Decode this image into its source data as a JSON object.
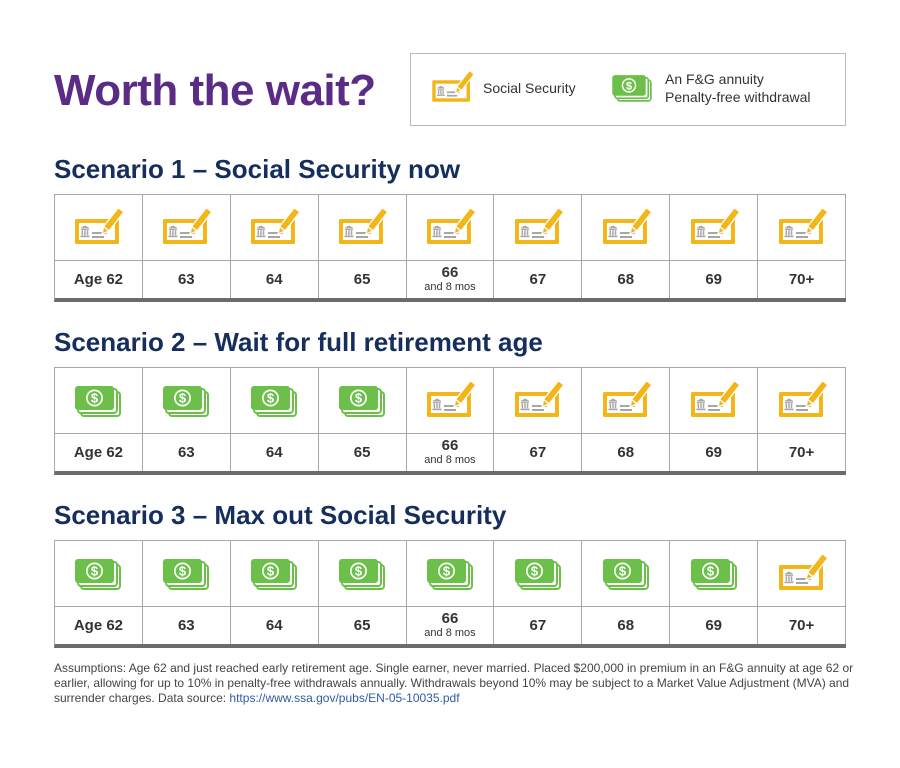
{
  "title": "Worth the wait?",
  "legend": {
    "social_security": {
      "icon": "social-security-check-icon",
      "label": "Social Security"
    },
    "annuity": {
      "icon": "annuity-cash-icon",
      "line1": "An F&G annuity",
      "line2": "Penalty-free withdrawal"
    }
  },
  "colors": {
    "title": "#5b2c86",
    "heading": "#152e5d",
    "check": "#f2b619",
    "cash": "#6cc04a"
  },
  "scenarios": [
    {
      "title": "Scenario 1 – Social Security now",
      "cells": [
        {
          "age": "Age 62",
          "icon": "check"
        },
        {
          "age": "63",
          "icon": "check"
        },
        {
          "age": "64",
          "icon": "check"
        },
        {
          "age": "65",
          "icon": "check"
        },
        {
          "age": "66",
          "sub": "and 8 mos",
          "icon": "check"
        },
        {
          "age": "67",
          "icon": "check"
        },
        {
          "age": "68",
          "icon": "check"
        },
        {
          "age": "69",
          "icon": "check"
        },
        {
          "age": "70+",
          "icon": "check"
        }
      ]
    },
    {
      "title": "Scenario 2 – Wait for full retirement age",
      "cells": [
        {
          "age": "Age 62",
          "icon": "cash"
        },
        {
          "age": "63",
          "icon": "cash"
        },
        {
          "age": "64",
          "icon": "cash"
        },
        {
          "age": "65",
          "icon": "cash"
        },
        {
          "age": "66",
          "sub": "and 8 mos",
          "icon": "check"
        },
        {
          "age": "67",
          "icon": "check"
        },
        {
          "age": "68",
          "icon": "check"
        },
        {
          "age": "69",
          "icon": "check"
        },
        {
          "age": "70+",
          "icon": "check"
        }
      ]
    },
    {
      "title": "Scenario 3 – Max out Social Security",
      "cells": [
        {
          "age": "Age 62",
          "icon": "cash"
        },
        {
          "age": "63",
          "icon": "cash"
        },
        {
          "age": "64",
          "icon": "cash"
        },
        {
          "age": "65",
          "icon": "cash"
        },
        {
          "age": "66",
          "sub": "and 8 mos",
          "icon": "cash"
        },
        {
          "age": "67",
          "icon": "cash"
        },
        {
          "age": "68",
          "icon": "cash"
        },
        {
          "age": "69",
          "icon": "cash"
        },
        {
          "age": "70+",
          "icon": "check"
        }
      ]
    }
  ],
  "footnote": {
    "text": "Assumptions: Age 62 and just reached early retirement age. Single earner, never married. Placed $200,000 in premium in an F&G annuity at age 62 or earlier, allowing for up to 10% in penalty-free withdrawals annually. Withdrawals beyond 10% may be subject to a Market Value Adjustment (MVA) and surrender charges. Data source: ",
    "link": "https://www.ssa.gov/pubs/EN-05-10035.pdf"
  }
}
